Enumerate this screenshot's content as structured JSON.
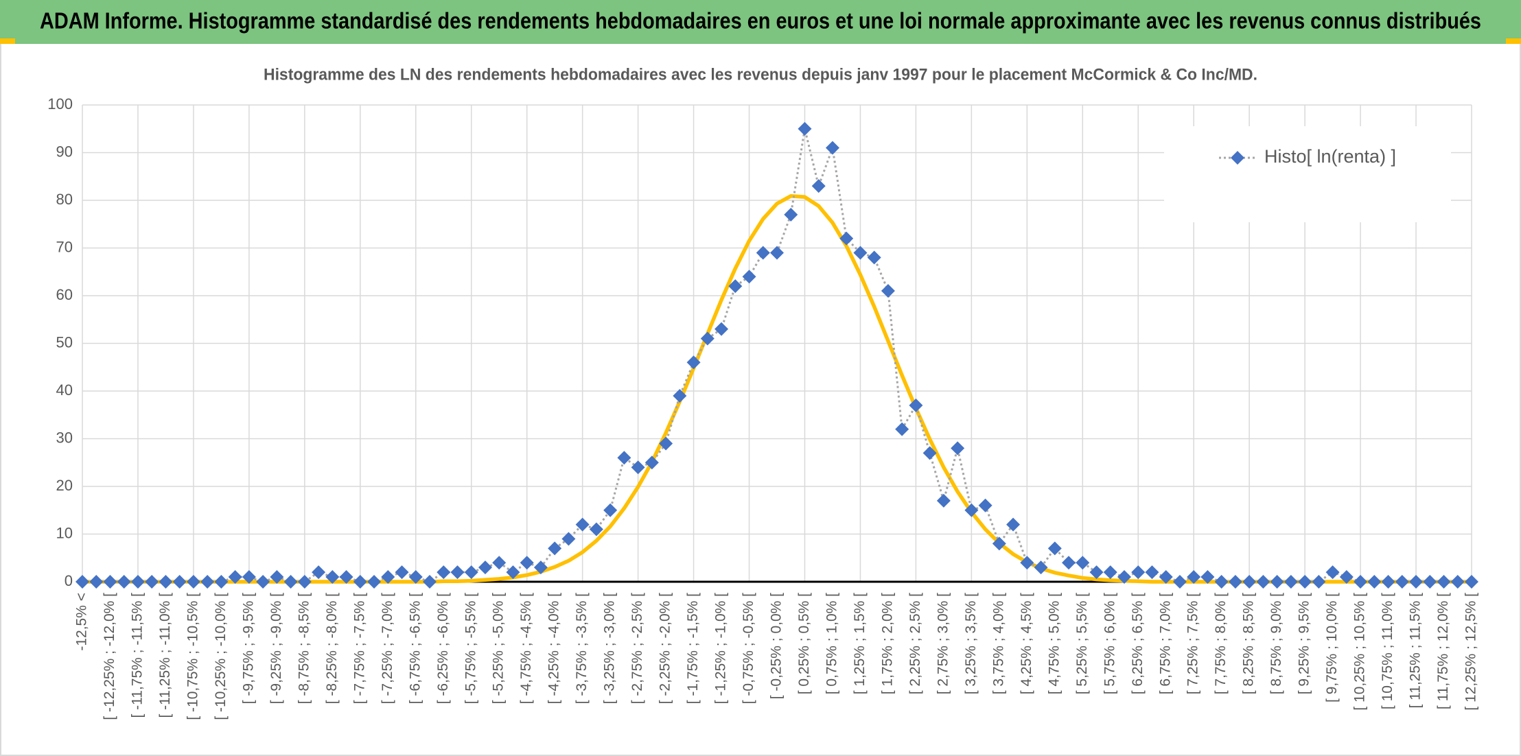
{
  "header": {
    "title": "ADAM Informe. Histogramme standardisé des rendements hebdomadaires en euros et une loi normale approximante avec les revenus connus distribués"
  },
  "chart_data": {
    "type": "line",
    "title": "Histogramme des LN des rendements hebdomadaires avec les revenus depuis janv 1997 pour le placement McCormick & Co Inc/MD.",
    "categories": [
      "-12,5% <",
      null,
      "[ -12,25% ; -12,0% [",
      null,
      "[ -11,75% ; -11,5% [",
      null,
      "[ -11,25% ; -11,0% [",
      null,
      "[ -10,75% ; -10,5% [",
      null,
      "[ -10,25% ; -10,0% [",
      null,
      "[ -9,75% ; -9,5% [",
      null,
      "[ -9,25% ; -9,0% [",
      null,
      "[ -8,75% ; -8,5% [",
      null,
      "[ -8,25% ; -8,0% [",
      null,
      "[ -7,75% ; -7,5% [",
      null,
      "[ -7,25% ; -7,0% [",
      null,
      "[ -6,75% ; -6,5% [",
      null,
      "[ -6,25% ; -6,0% [",
      null,
      "[ -5,75% ; -5,5% [",
      null,
      "[ -5,25% ; -5,0% [",
      null,
      "[ -4,75% ; -4,5% [",
      null,
      "[ -4,25% ; -4,0% [",
      null,
      "[ -3,75% ; -3,5% [",
      null,
      "[ -3,25% ; -3,0% [",
      null,
      "[ -2,75% ; -2,5% [",
      null,
      "[ -2,25% ; -2,0% [",
      null,
      "[ -1,75% ; -1,5% [",
      null,
      "[ -1,25% ; -1,0% [",
      null,
      "[ -0,75% ; -0,5% [",
      null,
      "[ -0,25% ; 0,0% [",
      null,
      "[ 0,25% ; 0,5% [",
      null,
      "[ 0,75% ; 1,0% [",
      null,
      "[ 1,25% ; 1,5% [",
      null,
      "[ 1,75% ; 2,0% [",
      null,
      "[ 2,25% ; 2,5% [",
      null,
      "[ 2,75% ; 3,0% [",
      null,
      "[ 3,25% ; 3,5% [",
      null,
      "[ 3,75% ; 4,0% [",
      null,
      "[ 4,25% ; 4,5% [",
      null,
      "[ 4,75% ; 5,0% [",
      null,
      "[ 5,25% ; 5,5% [",
      null,
      "[ 5,75% ; 6,0% [",
      null,
      "[ 6,25% ; 6,5% [",
      null,
      "[ 6,75% ; 7,0% [",
      null,
      "[ 7,25% ; 7,5% [",
      null,
      "[ 7,75% ; 8,0% [",
      null,
      "[ 8,25% ; 8,5% [",
      null,
      "[ 8,75% ; 9,0% [",
      null,
      "[ 9,25% ; 9,5% [",
      null,
      "[ 9,75% ; 10,0% [",
      null,
      "[ 10,25% ; 10,5% [",
      null,
      "[ 10,75% ; 11,0% [",
      null,
      "[ 11,25% ; 11,5% [",
      null,
      "[ 11,75% ; 12,0% [",
      null,
      "[ 12,25% ; 12,5% ["
    ],
    "series": [
      {
        "name": "Histo[ ln(renta) ]",
        "color": "#4472c4",
        "line_color": "#a5a5a5",
        "marker": "diamond",
        "values": [
          0,
          0,
          0,
          0,
          0,
          0,
          0,
          0,
          0,
          0,
          0,
          1,
          1,
          0,
          1,
          0,
          0,
          2,
          1,
          1,
          0,
          0,
          1,
          2,
          1,
          0,
          2,
          2,
          2,
          3,
          4,
          2,
          4,
          3,
          7,
          9,
          12,
          11,
          15,
          26,
          24,
          25,
          29,
          39,
          46,
          51,
          53,
          62,
          64,
          69,
          69,
          77,
          95,
          83,
          91,
          72,
          69,
          68,
          61,
          32,
          37,
          27,
          17,
          28,
          15,
          16,
          8,
          12,
          4,
          3,
          7,
          4,
          4,
          2,
          2,
          1,
          2,
          2,
          1,
          0,
          1,
          1,
          0,
          0,
          0,
          0,
          0,
          0,
          0,
          0,
          2,
          1,
          0,
          0,
          0,
          0,
          0,
          0,
          0,
          0,
          0
        ]
      },
      {
        "color": "#ffc000",
        "values": [
          0,
          0,
          0,
          0,
          0,
          0,
          0,
          0,
          0,
          0,
          0,
          0,
          0,
          0,
          0,
          0,
          0,
          0,
          0,
          0,
          0,
          0,
          0,
          0,
          0,
          0,
          0.1,
          0.1,
          0.2,
          0.4,
          0.6,
          0.9,
          1.4,
          2.1,
          3.1,
          4.4,
          6.2,
          8.6,
          11.6,
          15.4,
          19.9,
          25.1,
          31.2,
          37.8,
          44.8,
          52.0,
          59.1,
          65.7,
          71.5,
          76.1,
          79.3,
          80.9,
          80.7,
          78.8,
          75.3,
          70.4,
          64.4,
          57.7,
          50.5,
          43.3,
          36.4,
          29.9,
          24.0,
          18.9,
          14.6,
          11.0,
          8.1,
          5.8,
          4.1,
          2.8,
          1.9,
          1.3,
          0.8,
          0.5,
          0.3,
          0.2,
          0.1,
          0,
          0,
          0,
          0,
          0,
          0,
          0,
          0,
          0,
          0,
          0,
          0,
          0,
          0,
          0,
          0,
          0,
          0,
          0,
          0,
          0,
          0,
          0,
          0
        ]
      }
    ],
    "ylim": [
      0,
      100
    ],
    "yticks": [
      0,
      10,
      20,
      30,
      40,
      50,
      60,
      70,
      80,
      90,
      100
    ],
    "grid": true,
    "legend": "top-right"
  }
}
